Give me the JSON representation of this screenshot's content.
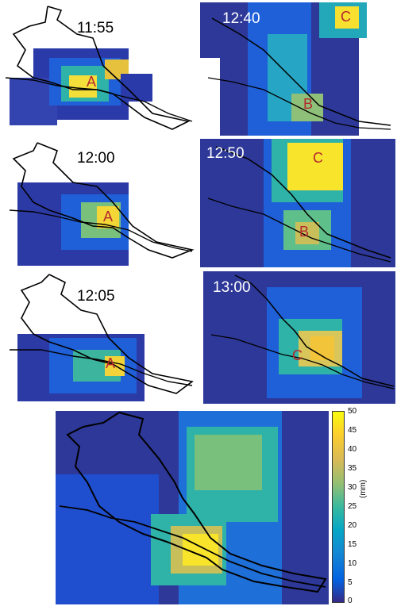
{
  "panels": [
    {
      "id": "p1155",
      "time": "11:55",
      "cell_labels": [
        "A"
      ],
      "time_color": "#000000"
    },
    {
      "id": "p1240",
      "time": "12:40",
      "cell_labels": [
        "C",
        "B"
      ],
      "time_color": "#ffffff"
    },
    {
      "id": "p1200",
      "time": "12:00",
      "cell_labels": [
        "A"
      ],
      "time_color": "#000000"
    },
    {
      "id": "p1250",
      "time": "12:50",
      "cell_labels": [
        "C",
        "B"
      ],
      "time_color": "#ffffff"
    },
    {
      "id": "p1205",
      "time": "12:05",
      "cell_labels": [
        "A"
      ],
      "time_color": "#000000"
    },
    {
      "id": "p1300",
      "time": "13:00",
      "cell_labels": [
        "C"
      ],
      "time_color": "#ffffff"
    },
    {
      "id": "accumulated",
      "time": "",
      "cell_labels": [],
      "time_color": "#000000"
    }
  ],
  "colorbar": {
    "ticks": [
      "50",
      "45",
      "40",
      "35",
      "30",
      "25",
      "20",
      "15",
      "10",
      "5",
      "0"
    ],
    "unit": "(mm)",
    "min": 0,
    "max": 50,
    "colors": [
      "#352a87",
      "#0363e1",
      "#1485d4",
      "#06a7c6",
      "#38b99e",
      "#92bf73",
      "#d9ba56",
      "#fcce2e",
      "#f9fb0e"
    ]
  }
}
